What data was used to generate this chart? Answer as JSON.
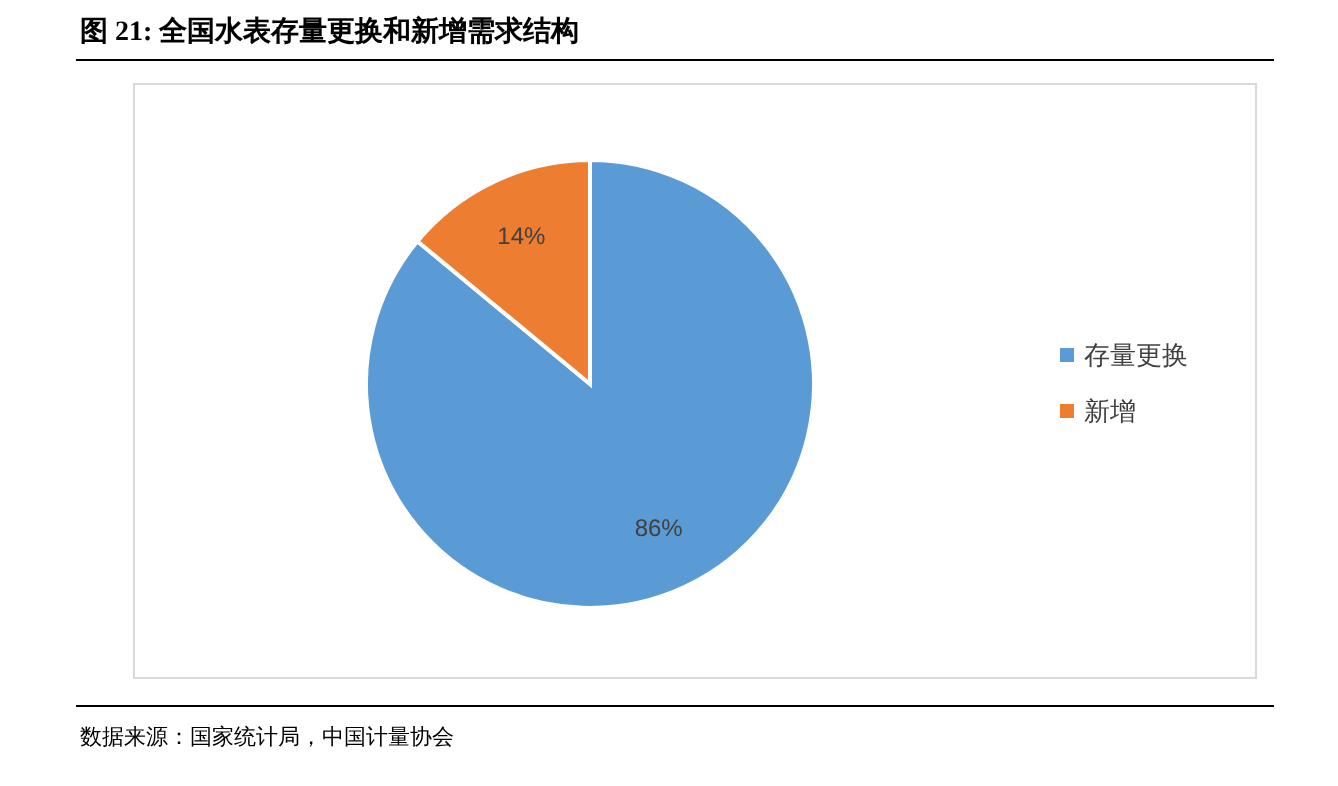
{
  "chart_data": {
    "type": "pie",
    "title": "图  21:  全国水表存量更换和新增需求结构",
    "categories": [
      "存量更换",
      "新增"
    ],
    "values": [
      86,
      14
    ],
    "colors": [
      "#5b9bd5",
      "#ed7d31"
    ],
    "value_labels": [
      "86%",
      "14%"
    ],
    "legend": "right",
    "annotations": [
      "数据来源：国家统计局，中国计量协会"
    ]
  }
}
